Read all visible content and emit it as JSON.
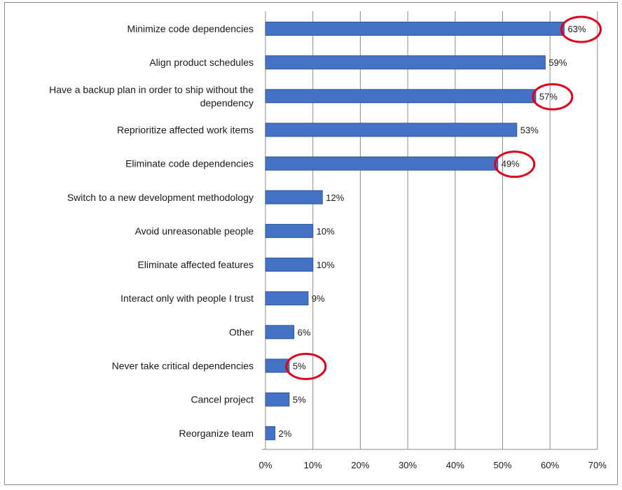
{
  "chart_data": {
    "type": "bar",
    "orientation": "horizontal",
    "categories": [
      "Minimize code dependencies",
      "Align product schedules",
      "Have a backup plan in order to ship without the dependency",
      "Reprioritize affected work items",
      "Eliminate code dependencies",
      "Switch to a new development methodology",
      "Avoid unreasonable people",
      "Eliminate affected features",
      "Interact only with people I trust",
      "Other",
      "Never take critical dependencies",
      "Cancel project",
      "Reorganize team"
    ],
    "category_label_lines": [
      [
        "Minimize code dependencies"
      ],
      [
        "Align product schedules"
      ],
      [
        "Have a backup plan in order to ship without the",
        "dependency"
      ],
      [
        "Reprioritize affected work items"
      ],
      [
        "Eliminate code dependencies"
      ],
      [
        "Switch to a new development methodology"
      ],
      [
        "Avoid unreasonable people"
      ],
      [
        "Eliminate affected features"
      ],
      [
        "Interact only with people I trust"
      ],
      [
        "Other"
      ],
      [
        "Never take critical dependencies"
      ],
      [
        "Cancel project"
      ],
      [
        "Reorganize team"
      ]
    ],
    "values": [
      63,
      59,
      57,
      53,
      49,
      12,
      10,
      10,
      9,
      6,
      5,
      5,
      2
    ],
    "value_labels": [
      "63%",
      "59%",
      "57%",
      "53%",
      "49%",
      "12%",
      "10%",
      "10%",
      "9%",
      "6%",
      "5%",
      "5%",
      "2%"
    ],
    "highlighted": [
      "Minimize code dependencies",
      "Have a backup plan in order to ship without the dependency",
      "Eliminate code dependencies",
      "Never take critical dependencies"
    ],
    "xlim": [
      0,
      70
    ],
    "xticks": [
      "0%",
      "10%",
      "20%",
      "30%",
      "40%",
      "50%",
      "60%",
      "70%"
    ],
    "grid": "vertical",
    "title": "",
    "xlabel": "",
    "ylabel": "",
    "colors": {
      "bar": "#4472c4",
      "bar_edge": "#2f5597",
      "highlight": "#e0001b",
      "grid": "#8c8c8c"
    }
  }
}
